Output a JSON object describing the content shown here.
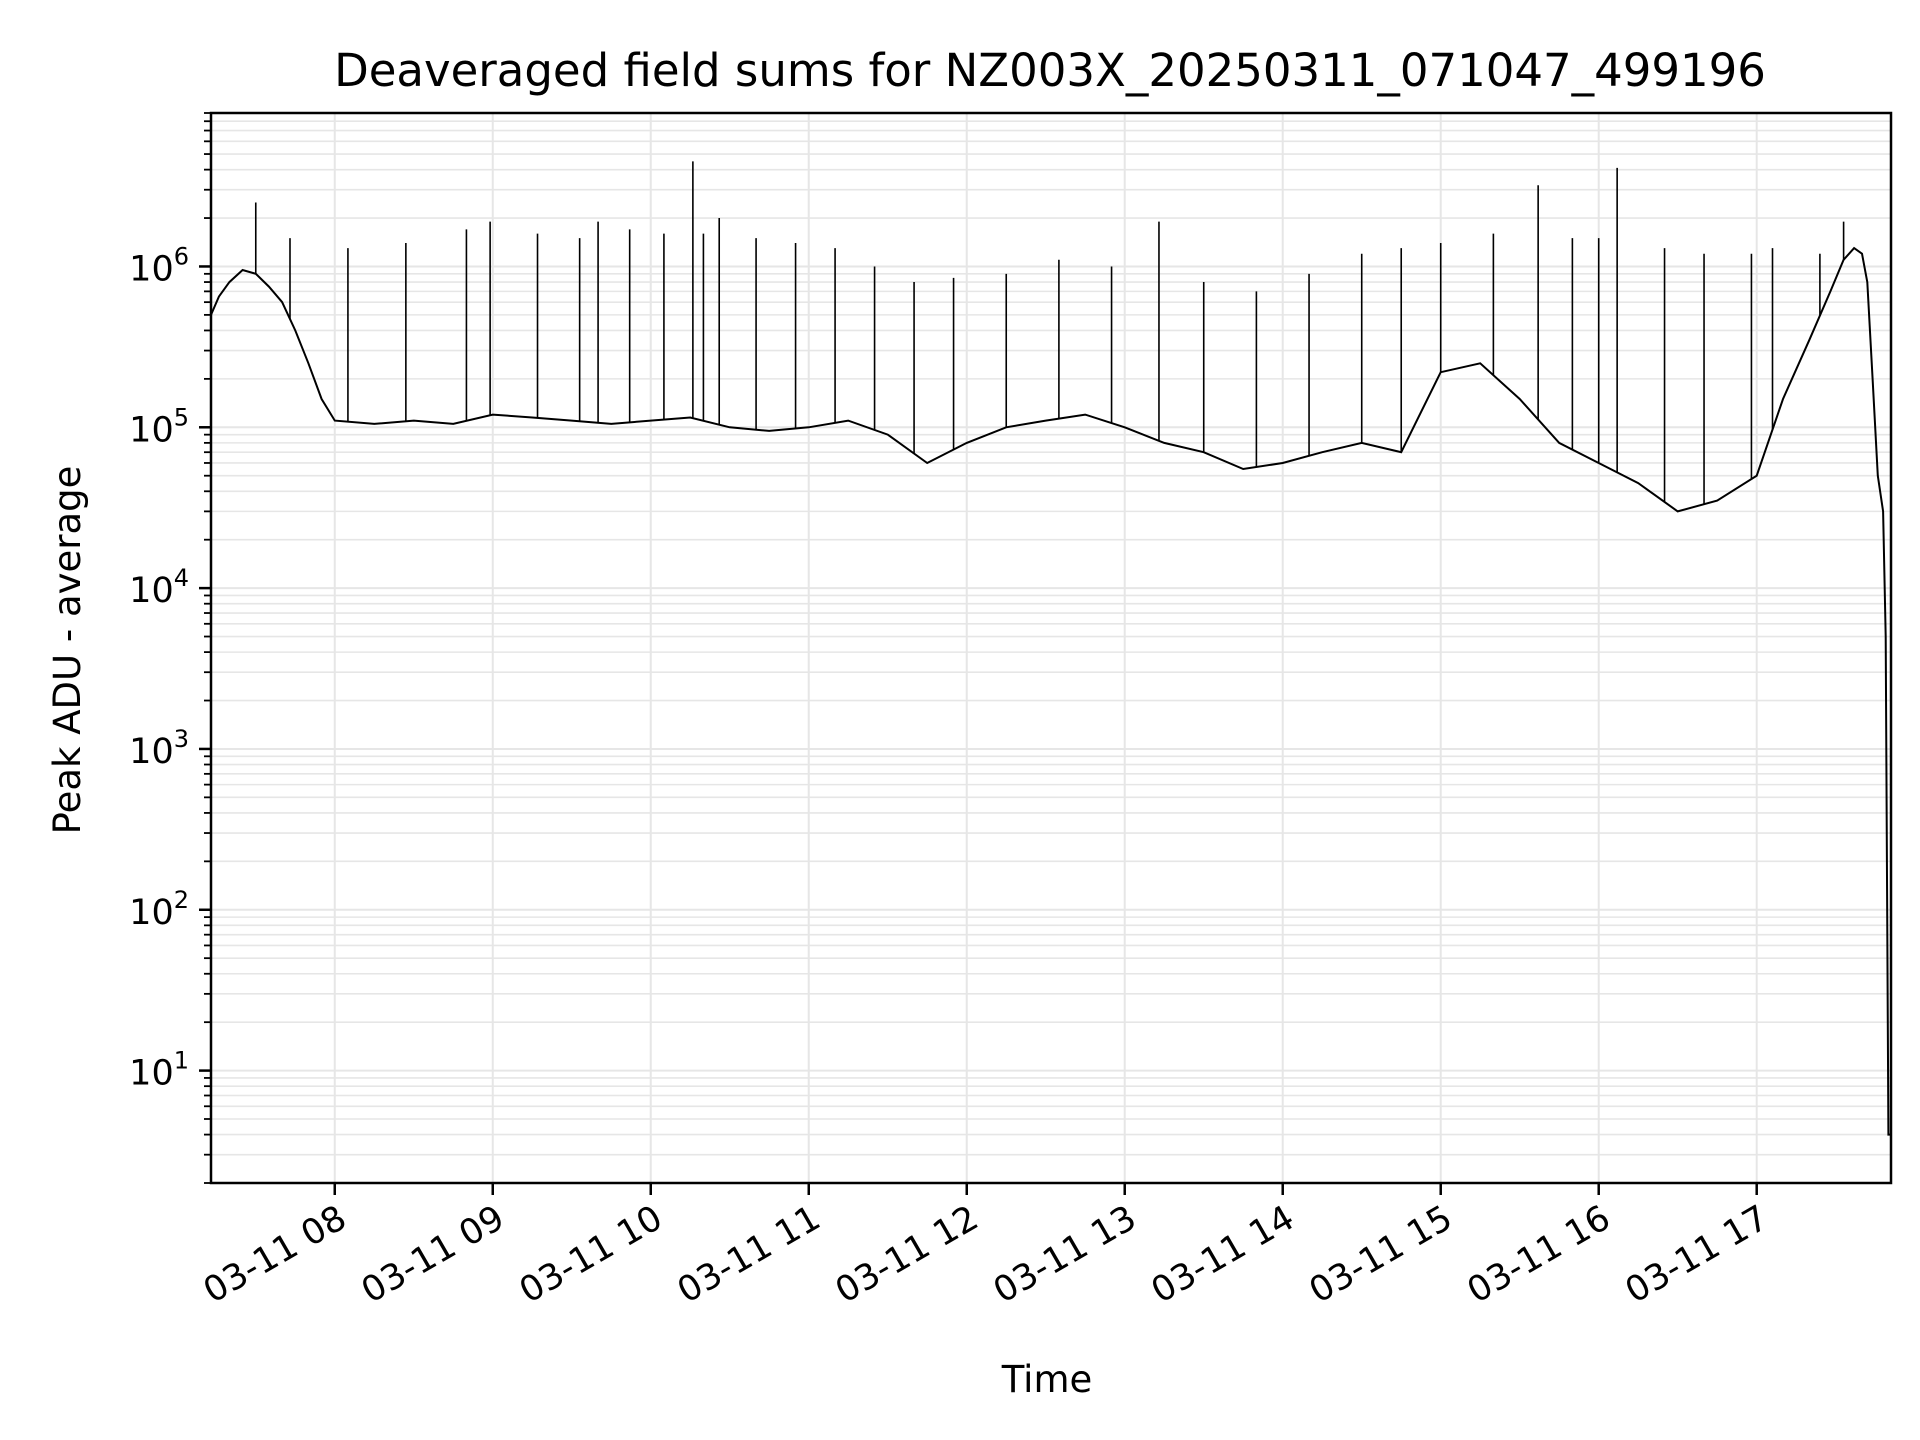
{
  "chart_data": {
    "type": "line",
    "title": "Deaveraged field sums for NZ003X_20250311_071047_499196",
    "xlabel": "Time",
    "ylabel": "Peak ADU - average",
    "yscale": "log",
    "grid": true,
    "line_color": "#000000",
    "grid_color": "#e6e6e6",
    "xlim": [
      "2025-03-11 07:13",
      "2025-03-11 17:51"
    ],
    "ylim": [
      2,
      9000000
    ],
    "x_ticks": [
      "2025-03-11 08:00",
      "2025-03-11 09:00",
      "2025-03-11 10:00",
      "2025-03-11 11:00",
      "2025-03-11 12:00",
      "2025-03-11 13:00",
      "2025-03-11 14:00",
      "2025-03-11 15:00",
      "2025-03-11 16:00",
      "2025-03-11 17:00"
    ],
    "x_tick_labels": [
      "03-11 08",
      "03-11 09",
      "03-11 10",
      "03-11 11",
      "03-11 12",
      "03-11 13",
      "03-11 14",
      "03-11 15",
      "03-11 16",
      "03-11 17"
    ],
    "y_ticks": [
      {
        "value": 10,
        "base": "10",
        "exp": "1"
      },
      {
        "value": 100,
        "base": "10",
        "exp": "2"
      },
      {
        "value": 1000,
        "base": "10",
        "exp": "3"
      },
      {
        "value": 10000,
        "base": "10",
        "exp": "4"
      },
      {
        "value": 100000,
        "base": "10",
        "exp": "5"
      },
      {
        "value": 1000000,
        "base": "10",
        "exp": "6"
      }
    ],
    "series": [
      {
        "x": [
          "2025-03-11 07:13",
          "2025-03-11 07:16",
          "2025-03-11 07:20",
          "2025-03-11 07:25",
          "2025-03-11 07:30",
          "2025-03-11 07:35",
          "2025-03-11 07:40",
          "2025-03-11 07:45",
          "2025-03-11 07:50",
          "2025-03-11 07:55",
          "2025-03-11 08:00",
          "2025-03-11 08:15",
          "2025-03-11 08:30",
          "2025-03-11 08:45",
          "2025-03-11 09:00",
          "2025-03-11 09:15",
          "2025-03-11 09:30",
          "2025-03-11 09:45",
          "2025-03-11 10:00",
          "2025-03-11 10:15",
          "2025-03-11 10:30",
          "2025-03-11 10:45",
          "2025-03-11 11:00",
          "2025-03-11 11:15",
          "2025-03-11 11:30",
          "2025-03-11 11:45",
          "2025-03-11 12:00",
          "2025-03-11 12:15",
          "2025-03-11 12:30",
          "2025-03-11 12:45",
          "2025-03-11 13:00",
          "2025-03-11 13:15",
          "2025-03-11 13:30",
          "2025-03-11 13:45",
          "2025-03-11 14:00",
          "2025-03-11 14:15",
          "2025-03-11 14:30",
          "2025-03-11 14:45",
          "2025-03-11 15:00",
          "2025-03-11 15:15",
          "2025-03-11 15:30",
          "2025-03-11 15:45",
          "2025-03-11 16:00",
          "2025-03-11 16:15",
          "2025-03-11 16:30",
          "2025-03-11 16:45",
          "2025-03-11 17:00",
          "2025-03-11 17:10",
          "2025-03-11 17:20",
          "2025-03-11 17:28",
          "2025-03-11 17:33",
          "2025-03-11 17:37",
          "2025-03-11 17:40",
          "2025-03-11 17:42",
          "2025-03-11 17:44",
          "2025-03-11 17:46",
          "2025-03-11 17:48",
          "2025-03-11 17:49",
          "2025-03-11 17:50",
          "2025-03-11 17:51"
        ],
        "values": [
          500000,
          650000,
          800000,
          950000,
          900000,
          750000,
          600000,
          400000,
          250000,
          150000,
          110000,
          105000,
          110000,
          105000,
          120000,
          115000,
          110000,
          105000,
          110000,
          115000,
          100000,
          95000,
          100000,
          110000,
          90000,
          60000,
          80000,
          100000,
          110000,
          120000,
          100000,
          80000,
          70000,
          55000,
          60000,
          70000,
          80000,
          70000,
          220000,
          250000,
          150000,
          80000,
          60000,
          45000,
          30000,
          35000,
          50000,
          150000,
          350000,
          700000,
          1100000,
          1300000,
          1200000,
          800000,
          200000,
          50000,
          30000,
          5000,
          4,
          4
        ],
        "spikes": [
          {
            "x": "2025-03-11 07:30",
            "y": 2500000
          },
          {
            "x": "2025-03-11 07:43",
            "y": 1500000
          },
          {
            "x": "2025-03-11 08:05",
            "y": 1300000
          },
          {
            "x": "2025-03-11 08:27",
            "y": 1400000
          },
          {
            "x": "2025-03-11 08:50",
            "y": 1700000
          },
          {
            "x": "2025-03-11 08:59",
            "y": 1900000
          },
          {
            "x": "2025-03-11 09:17",
            "y": 1600000
          },
          {
            "x": "2025-03-11 09:33",
            "y": 1500000
          },
          {
            "x": "2025-03-11 09:40",
            "y": 1900000
          },
          {
            "x": "2025-03-11 09:52",
            "y": 1700000
          },
          {
            "x": "2025-03-11 10:05",
            "y": 1600000
          },
          {
            "x": "2025-03-11 10:16",
            "y": 4500000
          },
          {
            "x": "2025-03-11 10:20",
            "y": 1600000
          },
          {
            "x": "2025-03-11 10:26",
            "y": 2000000
          },
          {
            "x": "2025-03-11 10:40",
            "y": 1500000
          },
          {
            "x": "2025-03-11 10:55",
            "y": 1400000
          },
          {
            "x": "2025-03-11 11:10",
            "y": 1300000
          },
          {
            "x": "2025-03-11 11:25",
            "y": 1000000
          },
          {
            "x": "2025-03-11 11:40",
            "y": 800000
          },
          {
            "x": "2025-03-11 11:55",
            "y": 850000
          },
          {
            "x": "2025-03-11 12:15",
            "y": 900000
          },
          {
            "x": "2025-03-11 12:35",
            "y": 1100000
          },
          {
            "x": "2025-03-11 12:55",
            "y": 1000000
          },
          {
            "x": "2025-03-11 13:13",
            "y": 1900000
          },
          {
            "x": "2025-03-11 13:30",
            "y": 800000
          },
          {
            "x": "2025-03-11 13:50",
            "y": 700000
          },
          {
            "x": "2025-03-11 14:10",
            "y": 900000
          },
          {
            "x": "2025-03-11 14:30",
            "y": 1200000
          },
          {
            "x": "2025-03-11 14:45",
            "y": 1300000
          },
          {
            "x": "2025-03-11 15:00",
            "y": 1400000
          },
          {
            "x": "2025-03-11 15:20",
            "y": 1600000
          },
          {
            "x": "2025-03-11 15:37",
            "y": 3200000
          },
          {
            "x": "2025-03-11 15:50",
            "y": 1500000
          },
          {
            "x": "2025-03-11 16:00",
            "y": 1500000
          },
          {
            "x": "2025-03-11 16:07",
            "y": 4100000
          },
          {
            "x": "2025-03-11 16:25",
            "y": 1300000
          },
          {
            "x": "2025-03-11 16:40",
            "y": 1200000
          },
          {
            "x": "2025-03-11 16:58",
            "y": 1200000
          },
          {
            "x": "2025-03-11 17:06",
            "y": 1300000
          },
          {
            "x": "2025-03-11 17:24",
            "y": 1200000
          },
          {
            "x": "2025-03-11 17:33",
            "y": 1900000
          }
        ]
      }
    ]
  }
}
